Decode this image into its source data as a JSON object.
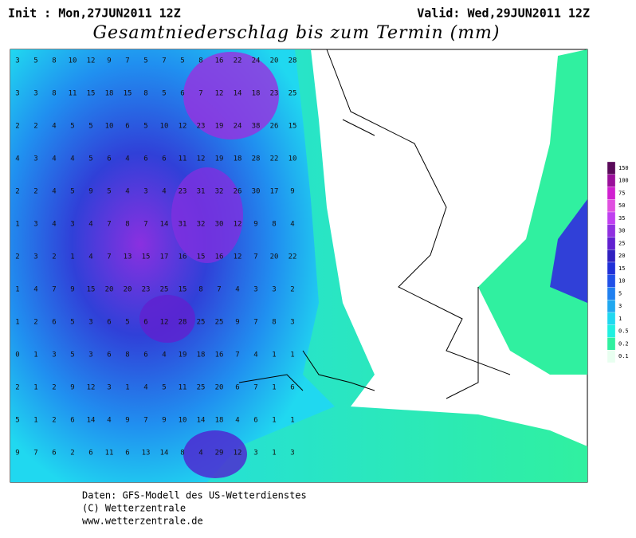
{
  "header": {
    "init": "Init : Mon,27JUN2011 12Z",
    "valid": "Valid: Wed,29JUN2011 12Z",
    "title": "Gesamtniederschlag bis zum Termin (mm)"
  },
  "legend": {
    "levels": [
      150,
      100,
      75,
      50,
      35,
      30,
      25,
      20,
      15,
      10,
      5,
      3,
      1,
      0.5,
      0.2,
      0.1
    ],
    "colors": [
      "#5a0a5a",
      "#9a109a",
      "#d020d0",
      "#e050e0",
      "#c040f0",
      "#9030e0",
      "#6020d0",
      "#3020c0",
      "#2030d8",
      "#2050e8",
      "#2080f0",
      "#20a8f0",
      "#20d8f0",
      "#20f0e0",
      "#30f0a0",
      "#e8fff0"
    ]
  },
  "map_values": [
    [
      3,
      5,
      8,
      10,
      12,
      9,
      7,
      5,
      7,
      5,
      8,
      16,
      22,
      24,
      20,
      28
    ],
    [
      3,
      3,
      8,
      11,
      15,
      18,
      15,
      8,
      5,
      6,
      7,
      12,
      14,
      18,
      23,
      25
    ],
    [
      2,
      2,
      4,
      5,
      5,
      10,
      6,
      5,
      10,
      12,
      23,
      19,
      24,
      38,
      26,
      15
    ],
    [
      4,
      3,
      4,
      4,
      5,
      6,
      4,
      6,
      6,
      11,
      12,
      19,
      18,
      28,
      22,
      10
    ],
    [
      2,
      2,
      4,
      5,
      9,
      5,
      4,
      3,
      4,
      23,
      31,
      32,
      26,
      30,
      17,
      9
    ],
    [
      1,
      3,
      4,
      3,
      4,
      7,
      8,
      7,
      14,
      31,
      32,
      30,
      12,
      9,
      8,
      4
    ],
    [
      2,
      3,
      2,
      1,
      4,
      7,
      13,
      15,
      17,
      16,
      15,
      16,
      12,
      7,
      20,
      22
    ],
    [
      1,
      4,
      7,
      9,
      15,
      20,
      20,
      23,
      25,
      15,
      8,
      7,
      4,
      3,
      3,
      2
    ],
    [
      1,
      2,
      6,
      5,
      3,
      6,
      5,
      6,
      12,
      28,
      25,
      25,
      9,
      7,
      8,
      3
    ],
    [
      0,
      1,
      3,
      5,
      3,
      6,
      8,
      6,
      4,
      19,
      18,
      16,
      7,
      4,
      1,
      1
    ],
    [
      2,
      1,
      2,
      9,
      12,
      3,
      1,
      4,
      5,
      11,
      25,
      20,
      6,
      7,
      1,
      6
    ],
    [
      5,
      1,
      2,
      6,
      14,
      4,
      9,
      7,
      9,
      10,
      14,
      18,
      4,
      6,
      1,
      1
    ],
    [
      9,
      7,
      6,
      2,
      6,
      11,
      6,
      13,
      14,
      8,
      4,
      29,
      12,
      3,
      1,
      3
    ]
  ],
  "footer": {
    "line1": "Daten: GFS-Modell des US-Wetterdienstes",
    "line2": "(C) Wetterzentrale",
    "line3": "www.wetterzentrale.de"
  }
}
